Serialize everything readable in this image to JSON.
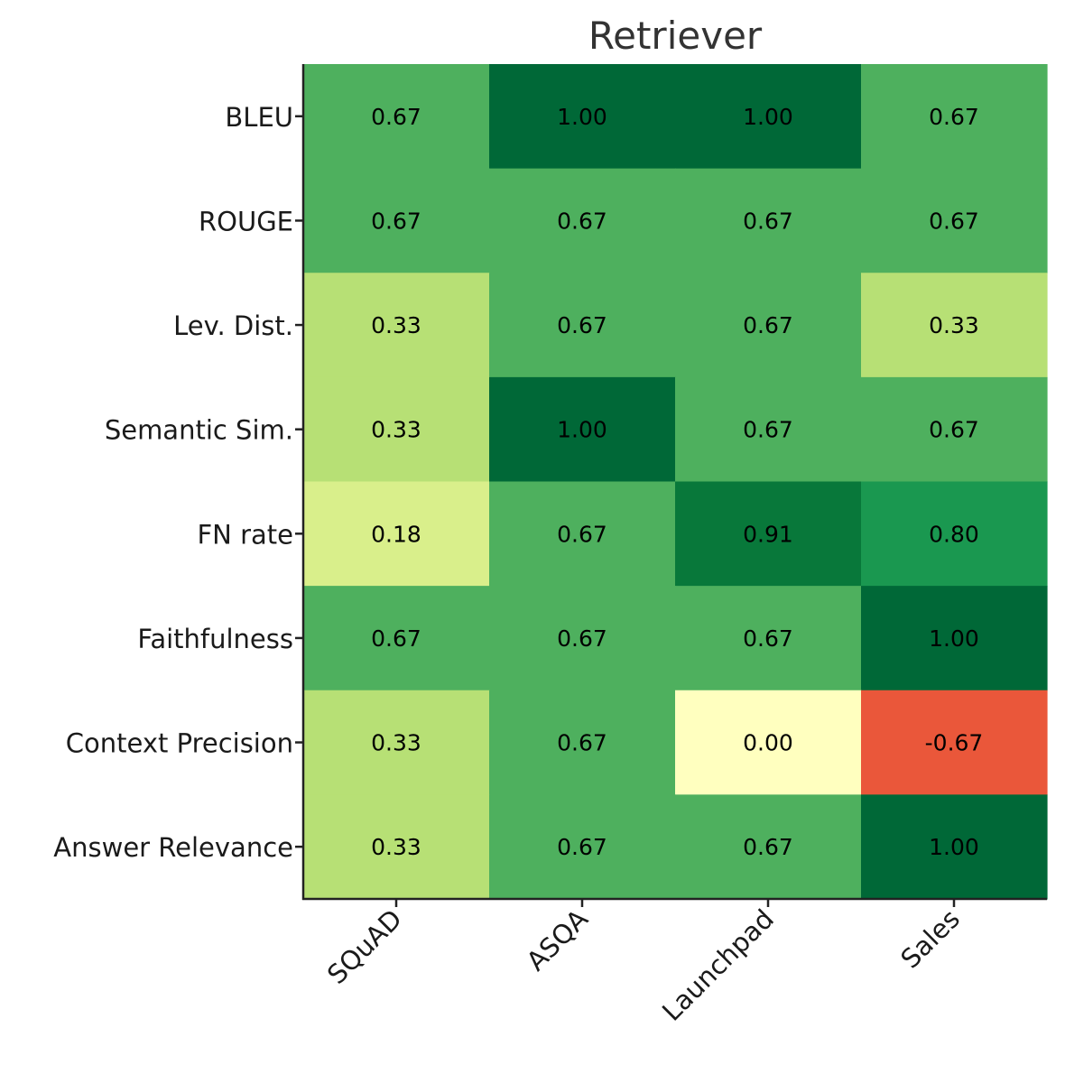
{
  "chart_data": {
    "type": "heatmap",
    "title": "Retriever",
    "xlabel": "",
    "ylabel": "",
    "columns": [
      "SQuAD",
      "ASQA",
      "Launchpad",
      "Sales"
    ],
    "rows": [
      "BLEU",
      "ROUGE",
      "Lev. Dist.",
      "Semantic Sim.",
      "FN rate",
      "Faithfulness",
      "Context Precision",
      "Answer Relevance"
    ],
    "values": [
      [
        0.67,
        1.0,
        1.0,
        0.67
      ],
      [
        0.67,
        0.67,
        0.67,
        0.67
      ],
      [
        0.33,
        0.67,
        0.67,
        0.33
      ],
      [
        0.33,
        1.0,
        0.67,
        0.67
      ],
      [
        0.18,
        0.67,
        0.91,
        0.8
      ],
      [
        0.67,
        0.67,
        0.67,
        1.0
      ],
      [
        0.33,
        0.67,
        0.0,
        -0.67
      ],
      [
        0.33,
        0.67,
        0.67,
        1.0
      ]
    ],
    "value_format": "0.00",
    "colormap": "RdYlGn",
    "color_range": [
      -1,
      1
    ],
    "colorbar": false,
    "grid": false
  }
}
